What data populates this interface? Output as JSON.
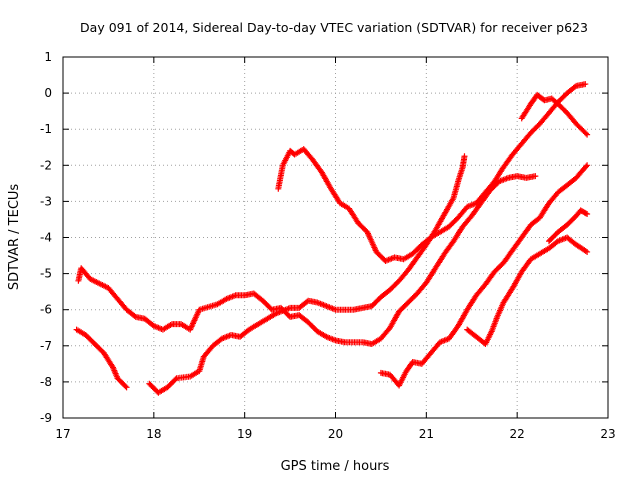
{
  "chart_data": {
    "type": "scatter",
    "title": "Day 091 of 2014, Sidereal Day-to-day VTEC variation (SDTVAR) for receiver p623",
    "xlabel": "GPS time / hours",
    "ylabel": "SDTVAR / TECUs",
    "xlim": [
      17,
      23
    ],
    "ylim": [
      -9,
      1
    ],
    "xticks": [
      "17",
      "18",
      "19",
      "20",
      "21",
      "22",
      "23"
    ],
    "yticks": [
      "-9",
      "-8",
      "-7",
      "-6",
      "-5",
      "-4",
      "-3",
      "-2",
      "-1",
      "0",
      "1"
    ],
    "grid": true,
    "marker": "+",
    "color": "#ff0000",
    "series": [
      {
        "name": "track-a",
        "points": [
          [
            17.17,
            -5.2
          ],
          [
            17.2,
            -4.85
          ],
          [
            17.3,
            -5.15
          ],
          [
            17.5,
            -5.4
          ],
          [
            17.6,
            -5.7
          ],
          [
            17.7,
            -6.0
          ],
          [
            17.8,
            -6.2
          ],
          [
            17.9,
            -6.25
          ],
          [
            18.0,
            -6.45
          ],
          [
            18.1,
            -6.55
          ],
          [
            18.2,
            -6.4
          ],
          [
            18.3,
            -6.4
          ],
          [
            18.4,
            -6.55
          ],
          [
            18.5,
            -6.0
          ],
          [
            18.7,
            -5.85
          ],
          [
            18.8,
            -5.7
          ],
          [
            18.9,
            -5.6
          ],
          [
            19.0,
            -5.6
          ],
          [
            19.1,
            -5.55
          ],
          [
            19.2,
            -5.75
          ],
          [
            19.3,
            -6.0
          ],
          [
            19.4,
            -5.95
          ],
          [
            19.5,
            -6.2
          ],
          [
            19.6,
            -6.15
          ],
          [
            19.7,
            -6.35
          ],
          [
            19.8,
            -6.6
          ],
          [
            19.9,
            -6.75
          ],
          [
            20.0,
            -6.85
          ],
          [
            20.1,
            -6.9
          ],
          [
            20.3,
            -6.9
          ],
          [
            20.4,
            -6.95
          ],
          [
            20.5,
            -6.8
          ],
          [
            20.6,
            -6.5
          ],
          [
            20.7,
            -6.05
          ],
          [
            20.8,
            -5.8
          ],
          [
            20.9,
            -5.55
          ],
          [
            21.0,
            -5.25
          ],
          [
            21.1,
            -4.85
          ],
          [
            21.2,
            -4.45
          ],
          [
            21.3,
            -4.1
          ],
          [
            21.4,
            -3.7
          ],
          [
            21.5,
            -3.4
          ],
          [
            21.6,
            -3.05
          ],
          [
            21.7,
            -2.7
          ],
          [
            21.8,
            -2.45
          ],
          [
            21.9,
            -2.35
          ],
          [
            22.0,
            -2.3
          ],
          [
            22.1,
            -2.35
          ],
          [
            22.2,
            -2.3
          ]
        ]
      },
      {
        "name": "track-b",
        "points": [
          [
            17.15,
            -6.55
          ],
          [
            17.25,
            -6.7
          ],
          [
            17.35,
            -6.95
          ],
          [
            17.45,
            -7.2
          ],
          [
            17.55,
            -7.6
          ],
          [
            17.6,
            -7.9
          ],
          [
            17.7,
            -8.15
          ]
        ]
      },
      {
        "name": "track-c",
        "points": [
          [
            17.95,
            -8.05
          ],
          [
            18.05,
            -8.3
          ],
          [
            18.15,
            -8.15
          ],
          [
            18.25,
            -7.9
          ],
          [
            18.4,
            -7.85
          ],
          [
            18.5,
            -7.7
          ],
          [
            18.55,
            -7.3
          ],
          [
            18.65,
            -7.0
          ],
          [
            18.75,
            -6.8
          ],
          [
            18.85,
            -6.7
          ],
          [
            18.95,
            -6.75
          ],
          [
            19.05,
            -6.55
          ],
          [
            19.15,
            -6.4
          ],
          [
            19.25,
            -6.25
          ],
          [
            19.35,
            -6.1
          ],
          [
            19.5,
            -5.95
          ],
          [
            19.6,
            -5.95
          ],
          [
            19.7,
            -5.75
          ],
          [
            19.8,
            -5.8
          ],
          [
            19.9,
            -5.9
          ],
          [
            20.0,
            -6.0
          ],
          [
            20.2,
            -6.0
          ],
          [
            20.3,
            -5.95
          ],
          [
            20.4,
            -5.9
          ],
          [
            20.5,
            -5.65
          ],
          [
            20.6,
            -5.45
          ],
          [
            20.7,
            -5.2
          ],
          [
            20.8,
            -4.9
          ],
          [
            20.9,
            -4.55
          ],
          [
            21.0,
            -4.2
          ],
          [
            21.1,
            -3.8
          ],
          [
            21.2,
            -3.35
          ],
          [
            21.3,
            -2.9
          ],
          [
            21.35,
            -2.45
          ],
          [
            21.4,
            -2.05
          ],
          [
            21.42,
            -1.75
          ]
        ]
      },
      {
        "name": "track-d",
        "points": [
          [
            19.37,
            -2.65
          ],
          [
            19.42,
            -2.0
          ],
          [
            19.5,
            -1.6
          ],
          [
            19.55,
            -1.7
          ],
          [
            19.65,
            -1.55
          ],
          [
            19.75,
            -1.85
          ],
          [
            19.85,
            -2.2
          ],
          [
            19.95,
            -2.65
          ],
          [
            20.05,
            -3.05
          ],
          [
            20.15,
            -3.2
          ],
          [
            20.25,
            -3.6
          ],
          [
            20.35,
            -3.85
          ],
          [
            20.45,
            -4.4
          ],
          [
            20.55,
            -4.65
          ],
          [
            20.65,
            -4.55
          ],
          [
            20.75,
            -4.6
          ],
          [
            20.85,
            -4.45
          ],
          [
            20.95,
            -4.2
          ],
          [
            21.05,
            -4.0
          ],
          [
            21.15,
            -3.85
          ],
          [
            21.25,
            -3.7
          ],
          [
            21.35,
            -3.45
          ],
          [
            21.45,
            -3.15
          ],
          [
            21.55,
            -3.05
          ],
          [
            21.65,
            -2.75
          ],
          [
            21.75,
            -2.45
          ],
          [
            21.85,
            -2.05
          ],
          [
            21.95,
            -1.7
          ],
          [
            22.05,
            -1.4
          ],
          [
            22.15,
            -1.1
          ],
          [
            22.25,
            -0.85
          ],
          [
            22.35,
            -0.55
          ],
          [
            22.45,
            -0.25
          ],
          [
            22.55,
            0.0
          ],
          [
            22.65,
            0.2
          ],
          [
            22.75,
            0.25
          ]
        ]
      },
      {
        "name": "track-e",
        "points": [
          [
            20.5,
            -7.75
          ],
          [
            20.6,
            -7.8
          ],
          [
            20.7,
            -8.1
          ],
          [
            20.78,
            -7.7
          ],
          [
            20.85,
            -7.45
          ],
          [
            20.95,
            -7.5
          ],
          [
            21.05,
            -7.2
          ],
          [
            21.15,
            -6.9
          ],
          [
            21.25,
            -6.8
          ],
          [
            21.35,
            -6.45
          ],
          [
            21.45,
            -6.0
          ],
          [
            21.55,
            -5.6
          ],
          [
            21.65,
            -5.3
          ],
          [
            21.75,
            -4.95
          ],
          [
            21.85,
            -4.7
          ],
          [
            21.95,
            -4.35
          ],
          [
            22.05,
            -4.0
          ],
          [
            22.15,
            -3.65
          ],
          [
            22.25,
            -3.45
          ],
          [
            22.35,
            -3.05
          ],
          [
            22.45,
            -2.75
          ],
          [
            22.55,
            -2.55
          ],
          [
            22.65,
            -2.35
          ],
          [
            22.7,
            -2.2
          ],
          [
            22.77,
            -2.0
          ]
        ]
      },
      {
        "name": "track-f",
        "points": [
          [
            21.45,
            -6.55
          ],
          [
            21.55,
            -6.75
          ],
          [
            21.65,
            -6.95
          ],
          [
            21.72,
            -6.6
          ],
          [
            21.78,
            -6.2
          ],
          [
            21.85,
            -5.8
          ],
          [
            21.95,
            -5.4
          ],
          [
            22.05,
            -4.95
          ],
          [
            22.15,
            -4.6
          ],
          [
            22.25,
            -4.45
          ],
          [
            22.35,
            -4.3
          ],
          [
            22.45,
            -4.1
          ],
          [
            22.55,
            -4.0
          ],
          [
            22.65,
            -4.2
          ],
          [
            22.77,
            -4.4
          ]
        ]
      },
      {
        "name": "track-g",
        "points": [
          [
            22.05,
            -0.7
          ],
          [
            22.15,
            -0.3
          ],
          [
            22.22,
            -0.05
          ],
          [
            22.3,
            -0.2
          ],
          [
            22.38,
            -0.15
          ],
          [
            22.45,
            -0.3
          ],
          [
            22.55,
            -0.55
          ],
          [
            22.65,
            -0.85
          ],
          [
            22.77,
            -1.15
          ]
        ]
      },
      {
        "name": "track-h",
        "points": [
          [
            22.35,
            -4.1
          ],
          [
            22.45,
            -3.85
          ],
          [
            22.55,
            -3.65
          ],
          [
            22.65,
            -3.4
          ],
          [
            22.7,
            -3.25
          ],
          [
            22.77,
            -3.35
          ]
        ]
      }
    ]
  }
}
